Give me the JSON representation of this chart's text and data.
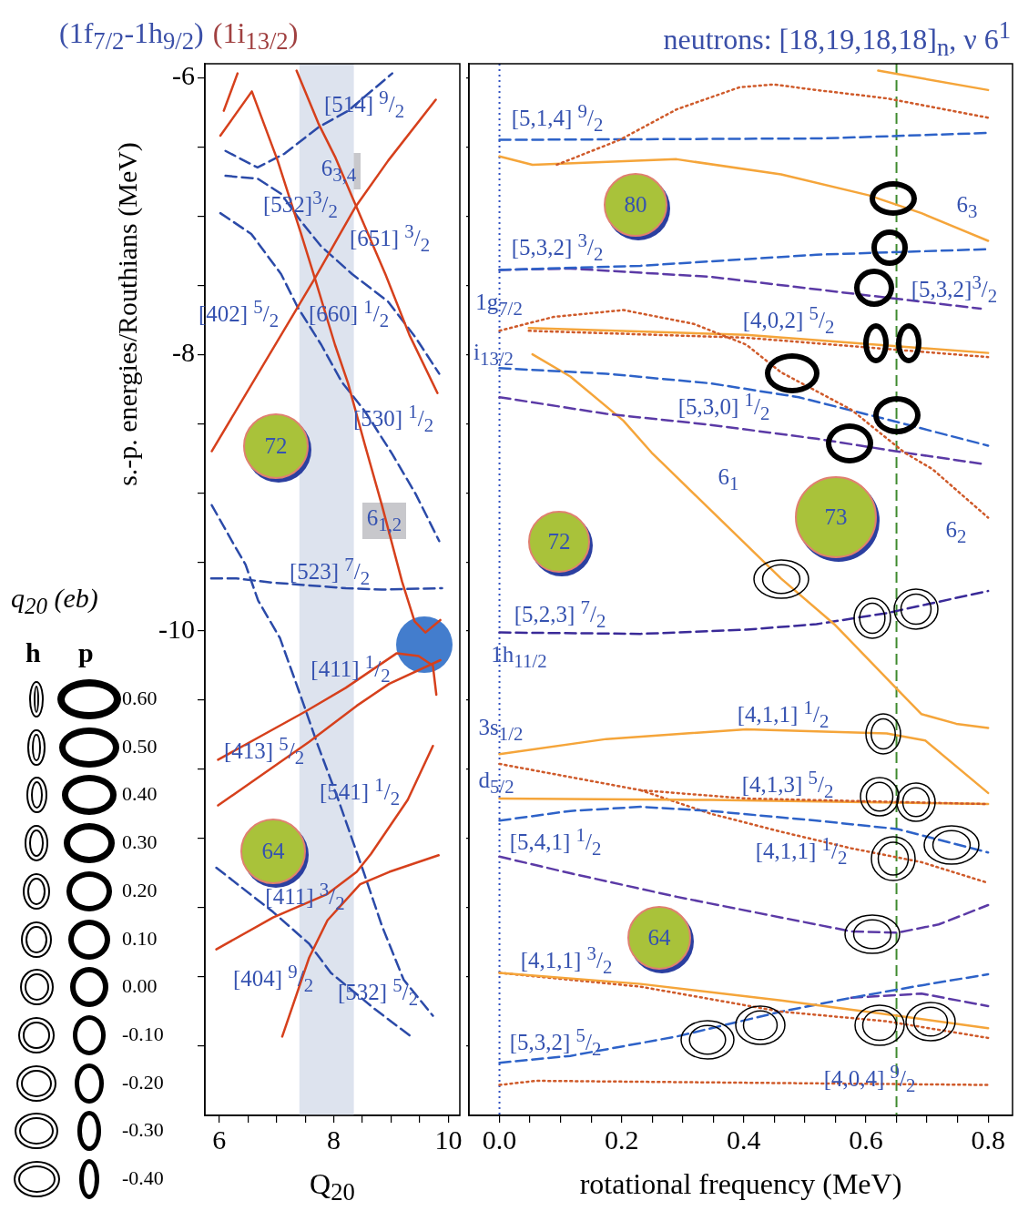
{
  "chart_data": [
    {
      "type": "line",
      "title": "(1f$_{7/2}$-1h$_{9/2}$)",
      "subtitle": "(1i$_{13/2}$)",
      "xlabel": "Q$_{20}$",
      "ylabel": "s.-p. energies/Routhians (MeV)",
      "xlim": [
        5.75,
        10.2
      ],
      "xticks": [
        6,
        {
          "value": 6.5,
          "label": null
        },
        {
          "value": 7,
          "label": null
        },
        {
          "value": 7.5,
          "label": null
        },
        8,
        {
          "value": 8.5,
          "label": null
        },
        {
          "value": 9,
          "label": null
        },
        {
          "value": 9.5,
          "label": null
        },
        10
      ],
      "ylim": [
        -13.5,
        -5.9
      ],
      "yticks": [
        -6,
        {
          "value": -6.5,
          "label": null
        },
        {
          "value": -7,
          "label": null
        },
        {
          "value": -7.5,
          "label": null
        },
        -8,
        {
          "value": -8.5,
          "label": null
        },
        {
          "value": -9,
          "label": null
        },
        {
          "value": -9.5,
          "label": null
        },
        -10,
        {
          "value": -10.5,
          "label": null
        },
        {
          "value": -11,
          "label": null
        },
        {
          "value": -11.5,
          "label": null
        },
        {
          "value": -12,
          "label": null
        },
        {
          "value": -12.5,
          "label": null
        },
        {
          "value": -13,
          "label": null
        }
      ],
      "bands": [
        {
          "axis": "x",
          "from": 7.4,
          "to": 8.35,
          "color": "#dde3ee"
        }
      ],
      "series": [
        {
          "color": "#d6401c",
          "line_style": "solid",
          "x": [
            7.35,
            7.73,
            8.02,
            8.37,
            8.9,
            9.32,
            9.81
          ],
          "values": [
            -5.95,
            -6.33,
            -6.57,
            -6.91,
            -7.42,
            -7.86,
            -8.28
          ]
        },
        {
          "color": "#d6401c",
          "line_style": "solid",
          "x": [
            6.02,
            6.57,
            7.02,
            7.43,
            7.67,
            8.02,
            8.25,
            8.54,
            8.84,
            9.19,
            9.41,
            9.6,
            9.86
          ],
          "values": [
            -6.42,
            -6.1,
            -6.6,
            -7.13,
            -7.45,
            -7.93,
            -8.21,
            -8.65,
            -9.09,
            -9.64,
            -9.93,
            -10.01,
            -9.92
          ]
        },
        {
          "color": "#d6401c",
          "line_style": "solid",
          "x": [
            5.87,
            7.37,
            7.67,
            8.37,
            8.95,
            9.78
          ],
          "values": [
            -8.7,
            -7.66,
            -7.45,
            -6.94,
            -6.6,
            -6.16
          ]
        },
        {
          "color": "#d6401c",
          "line_style": "solid",
          "x": [
            6.08,
            6.32
          ],
          "values": [
            -6.24,
            -5.97
          ]
        },
        {
          "color": "#d6401c",
          "line_style": "solid",
          "x": [
            5.98,
            7.51,
            8.21,
            9.1,
            9.48,
            9.73,
            9.79
          ],
          "values": [
            -10.93,
            -10.58,
            -10.41,
            -10.16,
            -10.18,
            -10.25,
            -10.46
          ]
        },
        {
          "color": "#d6401c",
          "line_style": "solid",
          "x": [
            5.98,
            7.57,
            8.4,
            8.97,
            9.86
          ],
          "values": [
            -11.26,
            -10.8,
            -10.54,
            -10.38,
            -10.21
          ]
        },
        {
          "color": "#d6401c",
          "line_style": "solid",
          "x": [
            5.95,
            6.94,
            7.89,
            8.4,
            8.65,
            9.29,
            9.73
          ],
          "values": [
            -12.3,
            -12.07,
            -11.9,
            -11.74,
            -11.61,
            -11.22,
            -10.83
          ]
        },
        {
          "color": "#d6401c",
          "line_style": "solid",
          "x": [
            7.1,
            7.57,
            7.89,
            8.46,
            8.97,
            9.83
          ],
          "values": [
            -12.93,
            -12.36,
            -12.09,
            -11.83,
            -11.74,
            -11.62
          ]
        },
        {
          "color": "#2b4aa8",
          "line_style": "dashed",
          "x": [
            6.11,
            6.67,
            7.14,
            7.73,
            8.25,
            9.02
          ],
          "values": [
            -6.53,
            -6.65,
            -6.55,
            -6.36,
            -6.24,
            -5.97
          ]
        },
        {
          "color": "#2b4aa8",
          "line_style": "dashed",
          "x": [
            6.11,
            6.67,
            7.08,
            7.43,
            7.78,
            8.32,
            8.95,
            9.43,
            9.84
          ],
          "values": [
            -6.71,
            -6.73,
            -6.84,
            -7.04,
            -7.22,
            -7.42,
            -7.62,
            -7.88,
            -8.14
          ]
        },
        {
          "color": "#2b4aa8",
          "line_style": "dashed",
          "x": [
            6.02,
            6.56,
            7.08,
            7.37,
            7.78,
            8.14,
            8.54,
            9.02,
            9.43,
            9.84
          ],
          "values": [
            -6.98,
            -7.13,
            -7.42,
            -7.66,
            -7.93,
            -8.2,
            -8.41,
            -8.72,
            -9.01,
            -9.35
          ]
        },
        {
          "color": "#2b4aa8",
          "line_style": "dashed",
          "x": [
            5.87,
            6.25,
            6.46,
            6.68,
            7.06,
            7.44,
            7.7,
            8.08,
            8.52,
            8.84,
            9.22,
            9.73
          ],
          "values": [
            -9.09,
            -9.37,
            -9.52,
            -9.78,
            -10.05,
            -10.49,
            -10.8,
            -11.22,
            -11.74,
            -12.13,
            -12.52,
            -12.78
          ]
        },
        {
          "color": "#2b4aa8",
          "line_style": "dashed",
          "x": [
            5.86,
            6.3,
            6.94,
            7.57,
            8.21,
            8.84,
            9.89
          ],
          "values": [
            -9.62,
            -9.62,
            -9.65,
            -9.67,
            -9.69,
            -9.7,
            -9.69
          ]
        },
        {
          "color": "#2b4aa8",
          "line_style": "dashed",
          "x": [
            5.95,
            6.94,
            7.57,
            7.95,
            8.71,
            9.38
          ],
          "values": [
            -11.71,
            -12.03,
            -12.26,
            -12.47,
            -12.73,
            -12.94
          ]
        }
      ],
      "annotations": [
        "[514] $^{9}$/$_{2}$",
        "6$_{3,4}$",
        "[532]$^{3}$/$_{2}$",
        "[651] $^{3}$/$_{2}$",
        "[402] $^{5}$/$_{2}$",
        "[660] $^{1}$/$_{2}$",
        "[530] $^{1}$/$_{2}$",
        "72",
        "6$_{1,2}$",
        "[523] $^{7}$/$_{2}$",
        "[411] $^{1}$/$_{2}$",
        "[413] $^{5}$/$_{2}$",
        "[541] $^{1}$/$_{2}$",
        "64",
        "[411] $^{3}$/$_{2}$",
        "[404] $^{9}$/$_{2}$",
        "[532] $^{5}$/$_{2}$",
        "q$_{20}$ (eb)",
        "h",
        "p",
        "0.60",
        "0.50",
        "0.40",
        "0.30",
        "0.20",
        "0.10",
        "0.00",
        "-0.10",
        "-0.20",
        "-0.30",
        "-0.40"
      ]
    },
    {
      "type": "line",
      "title": "neutrons: [18,19,18,18]$_{n}$, ν 6$^{1}$",
      "xlabel": "rotational frequency  (MeV)",
      "xlim": [
        -0.05,
        0.84
      ],
      "xticks": [
        {
          "value": 0,
          "label": "0.0"
        },
        {
          "value": 0.05,
          "label": null
        },
        {
          "value": 0.1,
          "label": null
        },
        {
          "value": 0.15,
          "label": null
        },
        {
          "value": 0.2,
          "label": "0.2"
        },
        {
          "value": 0.25,
          "label": null
        },
        {
          "value": 0.3,
          "label": null
        },
        {
          "value": 0.35,
          "label": null
        },
        {
          "value": 0.4,
          "label": "0.4"
        },
        {
          "value": 0.45,
          "label": null
        },
        {
          "value": 0.5,
          "label": null
        },
        {
          "value": 0.55,
          "label": null
        },
        {
          "value": 0.6,
          "label": "0.6"
        },
        {
          "value": 0.65,
          "label": null
        },
        {
          "value": 0.7,
          "label": null
        },
        {
          "value": 0.75,
          "label": null
        },
        {
          "value": 0.8,
          "label": "0.8"
        }
      ],
      "ylim": [
        -13.5,
        -5.9
      ],
      "yticks": [
        -6,
        {
          "value": -6.5,
          "label": null
        },
        {
          "value": -7,
          "label": null
        },
        {
          "value": -7.5,
          "label": null
        },
        -8,
        {
          "value": -8.5,
          "label": null
        },
        {
          "value": -9,
          "label": null
        },
        {
          "value": -9.5,
          "label": null
        },
        -10,
        {
          "value": -10.5,
          "label": null
        },
        {
          "value": -11,
          "label": null
        },
        {
          "value": -11.5,
          "label": null
        },
        {
          "value": -12,
          "label": null
        },
        {
          "value": -12.5,
          "label": null
        },
        {
          "value": -13,
          "label": null
        }
      ],
      "tick_labels": "x",
      "ref_lines": [
        {
          "axis": "x",
          "value": 0,
          "color": "#3050c0",
          "line_style": "dotted"
        },
        {
          "axis": "x",
          "value": 0.65,
          "color": "#3f8a2e",
          "line_style": "dashed"
        }
      ],
      "series": [
        {
          "color": "#f5a53a",
          "line_style": "solid",
          "x": [
            0.62,
            0.8
          ],
          "values": [
            -5.95,
            -6.09
          ]
        },
        {
          "color": "#cf5a2a",
          "line_style": "dotted",
          "x": [
            0.094,
            0.197,
            0.29,
            0.393,
            0.449,
            0.519,
            0.634,
            0.8
          ],
          "values": [
            -6.63,
            -6.45,
            -6.23,
            -6.07,
            -6.05,
            -6.09,
            -6.15,
            -6.29
          ]
        },
        {
          "color": "#2d62c8",
          "line_style": "dashed",
          "x": [
            0,
            0.527,
            0.8
          ],
          "values": [
            -6.45,
            -6.44,
            -6.4
          ]
        },
        {
          "color": "#f5a53a",
          "line_style": "solid",
          "x": [
            0,
            0.054,
            0.29,
            0.461,
            0.604,
            0.691,
            0.8
          ],
          "values": [
            -6.57,
            -6.63,
            -6.59,
            -6.7,
            -6.85,
            -6.98,
            -7.18
          ]
        },
        {
          "color": "#2d62c8",
          "line_style": "dashed",
          "x": [
            0,
            0.231,
            0.519,
            0.8
          ],
          "values": [
            -7.39,
            -7.36,
            -7.28,
            -7.24
          ]
        },
        {
          "color": "#5b3aa6",
          "line_style": "dashed",
          "x": [
            0,
            0.116,
            0.346,
            0.576,
            0.788
          ],
          "values": [
            -7.39,
            -7.38,
            -7.44,
            -7.56,
            -7.67
          ]
        },
        {
          "color": "#cf5a2a",
          "line_style": "dotted",
          "x": [
            0,
            0.088,
            0.203,
            0.318,
            0.404,
            0.461,
            0.576,
            0.663,
            0.709,
            0.8
          ],
          "values": [
            -7.83,
            -7.73,
            -7.68,
            -7.78,
            -7.93,
            -8.13,
            -8.4,
            -8.71,
            -8.83,
            -9.18
          ]
        },
        {
          "color": "#f5a53a",
          "line_style": "solid",
          "x": [
            0.048,
            0.404,
            0.8
          ],
          "values": [
            -7.81,
            -7.86,
            -7.99
          ]
        },
        {
          "color": "#cf5a2a",
          "line_style": "dotted",
          "x": [
            0.048,
            0.404,
            0.8
          ],
          "values": [
            -7.83,
            -7.88,
            -8.02
          ]
        },
        {
          "color": "#2d62c8",
          "line_style": "dashed",
          "x": [
            0,
            0.175,
            0.346,
            0.49,
            0.634,
            0.8
          ],
          "values": [
            -8.1,
            -8.14,
            -8.21,
            -8.31,
            -8.47,
            -8.66
          ]
        },
        {
          "color": "#5b3aa6",
          "line_style": "dashed",
          "x": [
            0,
            0.175,
            0.346,
            0.519,
            0.663,
            0.788
          ],
          "values": [
            -8.31,
            -8.43,
            -8.51,
            -8.61,
            -8.71,
            -8.79
          ]
        },
        {
          "color": "#f5a53a",
          "line_style": "solid",
          "x": [
            0.054,
            0.116,
            0.203,
            0.249,
            0.461,
            0.548,
            0.651,
            0.691,
            0.748,
            0.8
          ],
          "values": [
            -8.0,
            -8.16,
            -8.48,
            -8.71,
            -9.62,
            -9.95,
            -10.42,
            -10.6,
            -10.67,
            -10.7
          ]
        },
        {
          "color": "#3a2a98",
          "line_style": "dashed",
          "x": [
            0,
            0.231,
            0.404,
            0.519,
            0.634,
            0.8
          ],
          "values": [
            -10.01,
            -10.02,
            -9.99,
            -9.95,
            -9.87,
            -9.71
          ]
        },
        {
          "color": "#f5a53a",
          "line_style": "solid",
          "x": [
            0,
            0.175,
            0.404,
            0.634,
            0.697,
            0.8
          ],
          "values": [
            -10.89,
            -10.78,
            -10.71,
            -10.74,
            -10.79,
            -11.17
          ]
        },
        {
          "color": "#cf5a2a",
          "line_style": "dotted",
          "x": [
            0,
            0.231,
            0.404,
            0.8
          ],
          "values": [
            -10.96,
            -11.15,
            -11.21,
            -11.25
          ]
        },
        {
          "color": "#f5a53a",
          "line_style": "solid",
          "x": [
            0,
            0.346,
            0.8
          ],
          "values": [
            -11.21,
            -11.22,
            -11.25
          ]
        },
        {
          "color": "#2d62c8",
          "line_style": "dashed",
          "x": [
            0,
            0.116,
            0.231,
            0.346,
            0.519,
            0.651,
            0.8
          ],
          "values": [
            -11.37,
            -11.3,
            -11.27,
            -11.3,
            -11.37,
            -11.43,
            -11.6
          ]
        },
        {
          "color": "#cf5a2a",
          "line_style": "dotted",
          "x": [
            0.231,
            0.346,
            0.461,
            0.576,
            0.691,
            0.8
          ],
          "values": [
            -11.15,
            -11.32,
            -11.45,
            -11.57,
            -11.67,
            -11.82
          ]
        },
        {
          "color": "#5b3aa6",
          "line_style": "dashed",
          "x": [
            0,
            0.116,
            0.29,
            0.461,
            0.576,
            0.651,
            0.719,
            0.8
          ],
          "values": [
            -11.63,
            -11.75,
            -11.92,
            -12.07,
            -12.17,
            -12.18,
            -12.12,
            -11.98
          ]
        },
        {
          "color": "#f5a53a",
          "line_style": "solid",
          "x": [
            0,
            0.231,
            0.461,
            0.634,
            0.8
          ],
          "values": [
            -12.47,
            -12.55,
            -12.67,
            -12.77,
            -12.87
          ]
        },
        {
          "color": "#cf5a2a",
          "line_style": "dotted",
          "x": [
            0,
            0.231,
            0.461,
            0.634,
            0.8
          ],
          "values": [
            -12.47,
            -12.57,
            -12.75,
            -12.82,
            -12.94
          ]
        },
        {
          "color": "#2d62c8",
          "line_style": "dashed",
          "x": [
            0,
            0.116,
            0.29,
            0.461,
            0.576,
            0.691,
            0.8
          ],
          "values": [
            -13.12,
            -13.07,
            -12.93,
            -12.75,
            -12.65,
            -12.56,
            -12.48
          ]
        },
        {
          "color": "#5b3aa6",
          "line_style": "dashed",
          "x": [
            0.576,
            0.691,
            0.8
          ],
          "values": [
            -12.65,
            -12.62,
            -12.71
          ]
        },
        {
          "color": "#cf5a2a",
          "line_style": "dotted",
          "x": [
            0,
            0.06,
            0.8
          ],
          "values": [
            -13.28,
            -13.25,
            -13.28
          ]
        }
      ],
      "annotations": [
        "[5,1,4] $^{9}$/$_{2}$",
        "80",
        "6$_{3}$",
        "[5,3,2] $^{3}$/$_{2}$",
        "[5,3,2]$^{3}$/$_{2}$",
        "1g$_{7/2}$",
        "[4,0,2] $^{5}$/$_{2}$",
        "i$_{13/2}$",
        "[5,3,0] $^{1}$/$_{2}$",
        "6$_{1}$",
        "73",
        "6$_{2}$",
        "72",
        "[5,2,3] $^{7}$/$_{2}$",
        "1h$_{11/2}$",
        "[4,1,1] $^{1}$/$_{2}$",
        "3s$_{1/2}$",
        "d$_{5/2}$",
        "[4,1,3] $^{5}$/$_{2}$",
        "[5,4,1] $^{1}$/$_{2}$",
        "[4,1,1] $^{1}$/$_{2}$",
        "64",
        "[4,1,1] $^{3}$/$_{2}$",
        "[5,3,2] $^{5}$/$_{2}$",
        "[4,0,4] $^{9}$/$_{2}$"
      ]
    }
  ]
}
